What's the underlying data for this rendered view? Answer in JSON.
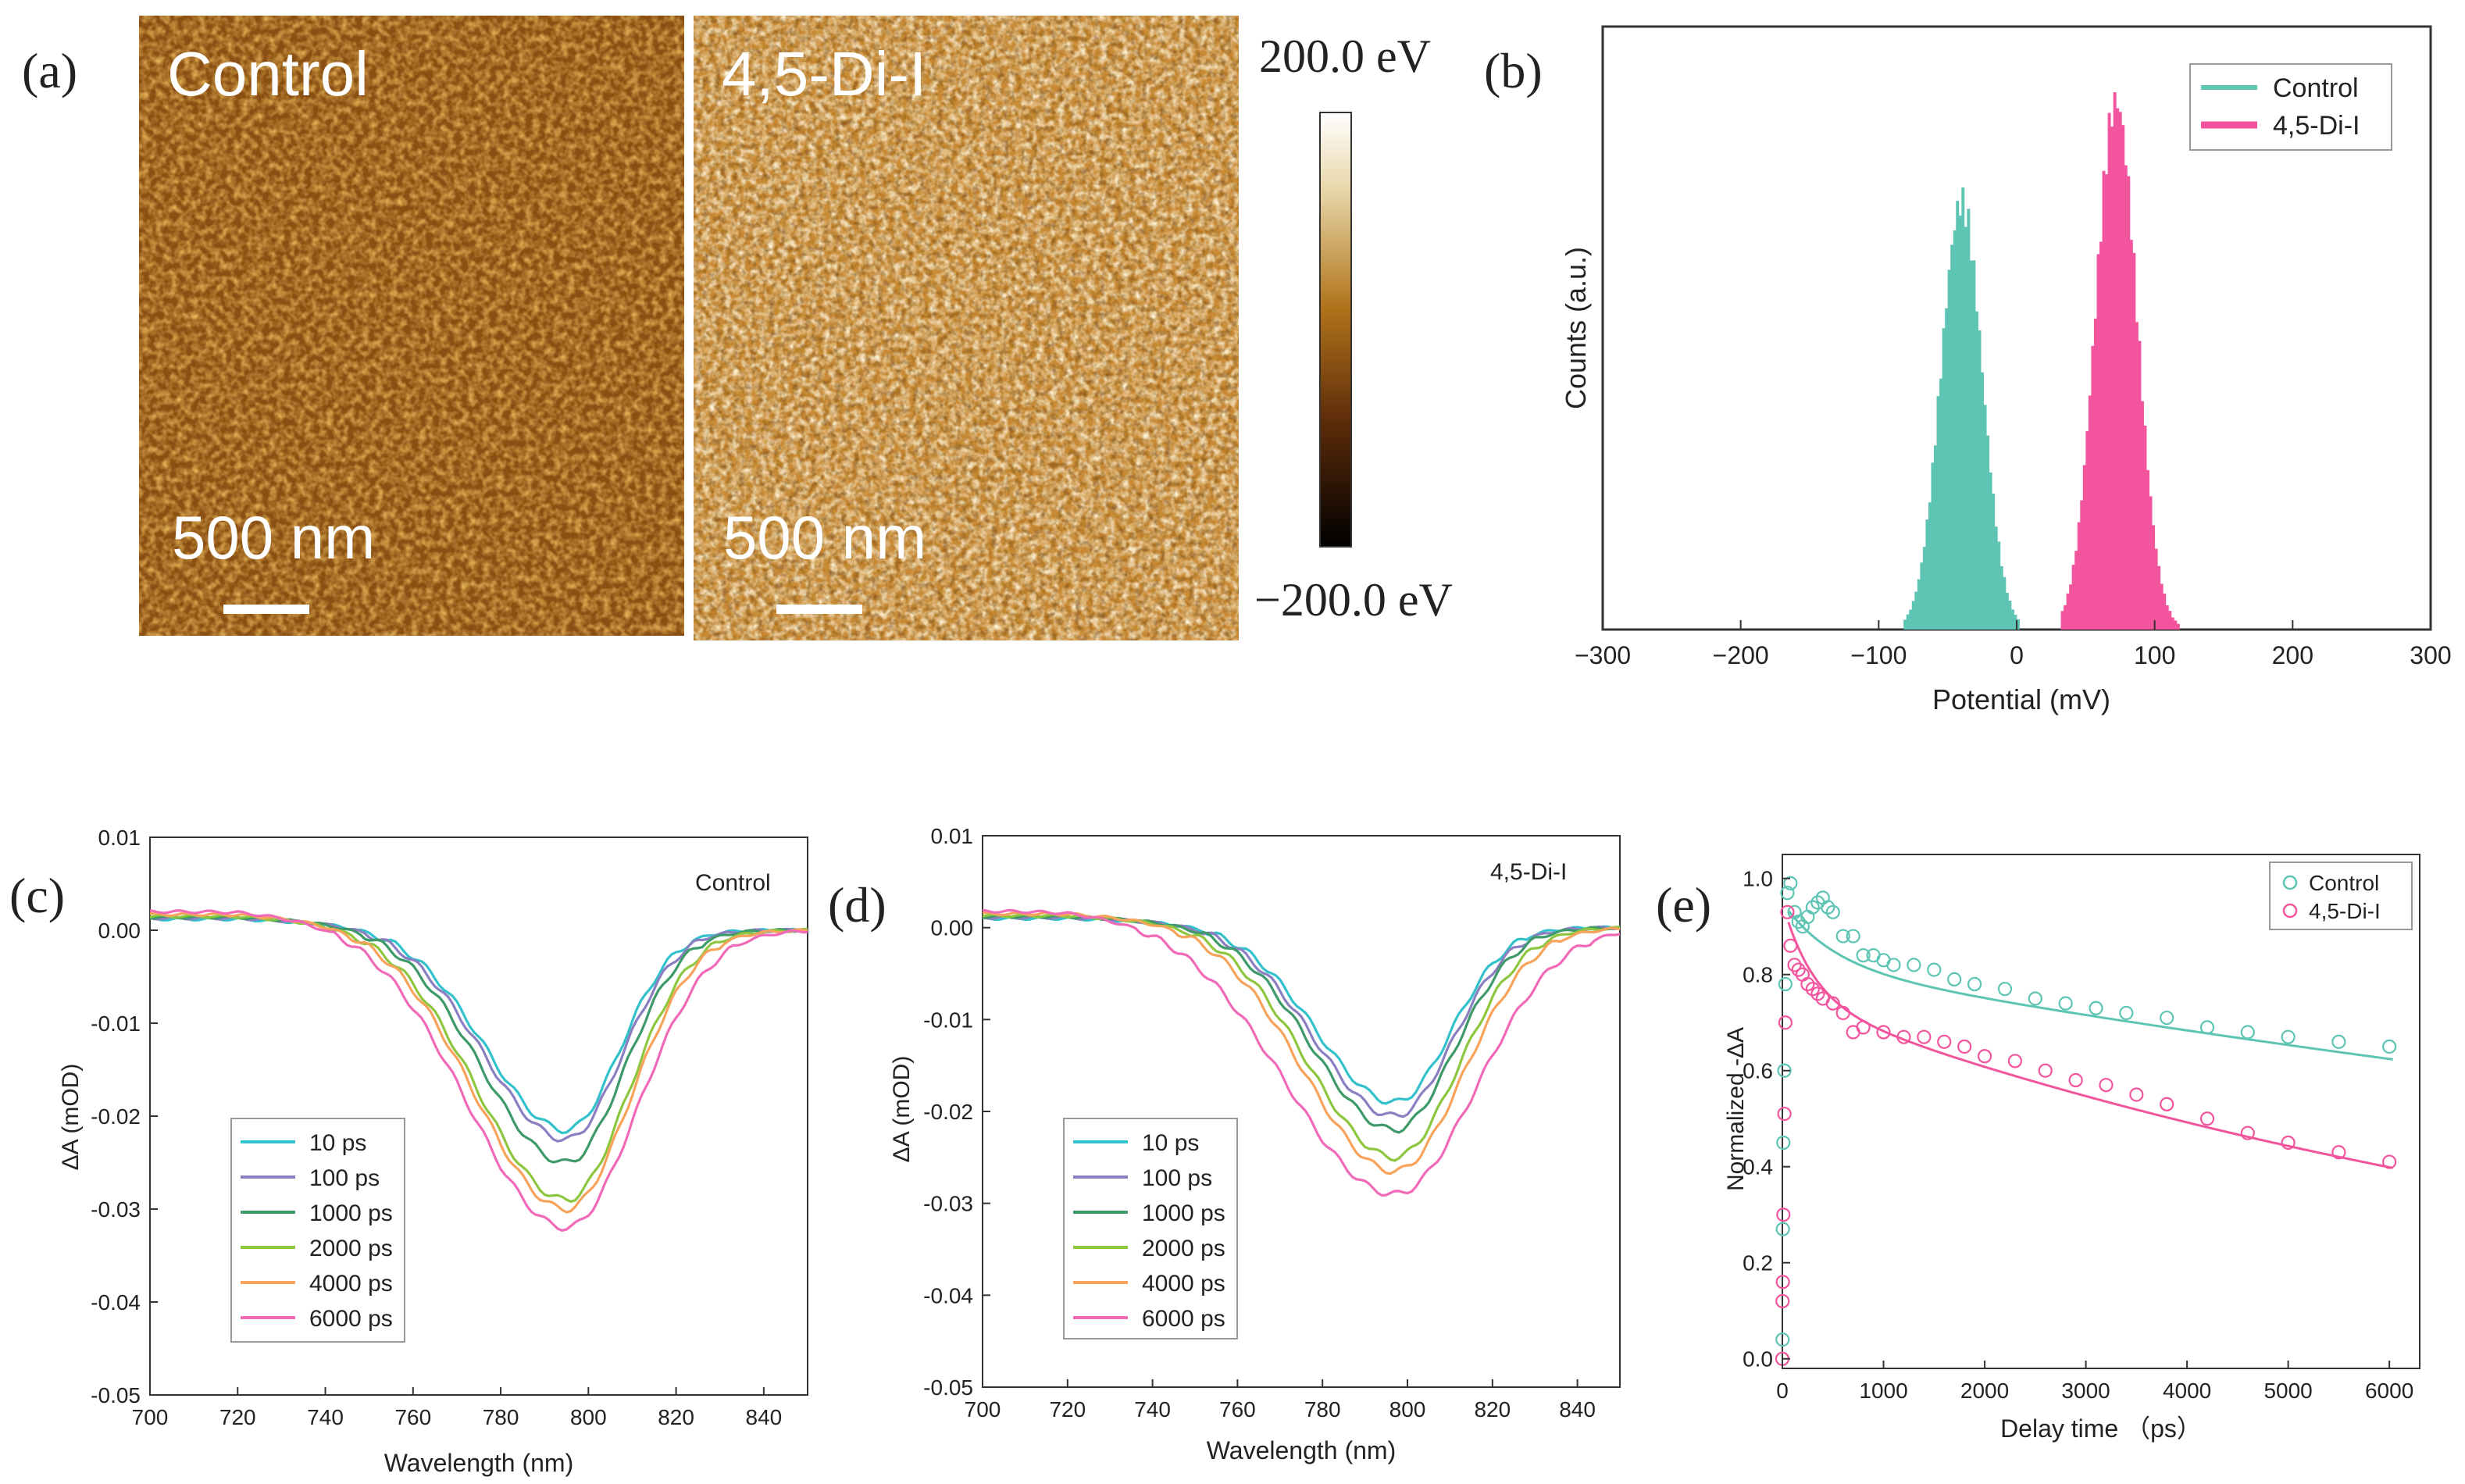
{
  "colors": {
    "control": "#5EC4B4",
    "dii": "#F2559E",
    "t10": "#33C2CC",
    "t100": "#8B7FC2",
    "t1000": "#3F9A6A",
    "t2000": "#8DC63F",
    "t4000": "#F7A35C",
    "t6000": "#F06AB8"
  },
  "chart_data": [
    {
      "type": "image",
      "panel_label": "(a)",
      "images": [
        {
          "title": "Control",
          "scalebar": "500 nm",
          "tone": "dark"
        },
        {
          "title": "4,5-Di-I",
          "scalebar": "500 nm",
          "tone": "light"
        }
      ],
      "colorbar": {
        "max_label": "200.0 eV",
        "min_label": "−200.0 eV"
      }
    },
    {
      "type": "bar",
      "panel_label": "(b)",
      "xlabel": "Potential (mV)",
      "ylabel": "Counts (a.u.)",
      "xlim": [
        -300,
        300
      ],
      "xticks": [
        -300,
        -200,
        -100,
        0,
        100,
        200,
        300
      ],
      "legend_position": "top-right",
      "series": [
        {
          "name": "Control",
          "color_key": "control",
          "center": -40,
          "sigma": 15,
          "range": [
            -82,
            2
          ],
          "peak": 0.81
        },
        {
          "name": "4,5-Di-I",
          "color_key": "dii",
          "center": 72,
          "sigma": 15,
          "range": [
            32,
            118
          ],
          "peak": 1.0
        }
      ]
    },
    {
      "type": "line",
      "panel_label": "(c)",
      "annotation": "Control",
      "xlabel": "Wavelength (nm)",
      "ylabel": "ΔA (mOD)",
      "xlim": [
        700,
        850
      ],
      "ylim": [
        -0.05,
        0.01
      ],
      "xticks": [
        700,
        720,
        740,
        760,
        780,
        800,
        820,
        840
      ],
      "yticks": [
        "0.01",
        "0.00",
        "-0.01",
        "-0.02",
        "-0.03",
        "-0.04",
        "-0.05"
      ],
      "legend_position": "bottom-left",
      "series": [
        {
          "name": "10 ps",
          "color_key": "t10",
          "min": -0.0215,
          "min_at": 795,
          "sigma_left": 18,
          "sigma_right": 12,
          "baseline": 0.0012
        },
        {
          "name": "100 ps",
          "color_key": "t100",
          "min": -0.0225,
          "min_at": 795,
          "sigma_left": 18.5,
          "sigma_right": 12.5,
          "baseline": 0.0013
        },
        {
          "name": "1000 ps",
          "color_key": "t1000",
          "min": -0.025,
          "min_at": 795,
          "sigma_left": 19,
          "sigma_right": 13,
          "baseline": 0.0014
        },
        {
          "name": "2000 ps",
          "color_key": "t2000",
          "min": -0.029,
          "min_at": 795,
          "sigma_left": 20,
          "sigma_right": 14,
          "baseline": 0.0015
        },
        {
          "name": "4000 ps",
          "color_key": "t4000",
          "min": -0.03,
          "min_at": 795,
          "sigma_left": 20.5,
          "sigma_right": 14.5,
          "baseline": 0.0017
        },
        {
          "name": "6000 ps",
          "color_key": "t6000",
          "min": -0.032,
          "min_at": 795,
          "sigma_left": 22,
          "sigma_right": 16,
          "baseline": 0.002
        }
      ]
    },
    {
      "type": "line",
      "panel_label": "(d)",
      "annotation": "4,5-Di-I",
      "xlabel": "Wavelength (nm)",
      "ylabel": "ΔA (mOD)",
      "xlim": [
        700,
        850
      ],
      "ylim": [
        -0.05,
        0.01
      ],
      "xticks": [
        700,
        720,
        740,
        760,
        780,
        800,
        820,
        840
      ],
      "yticks": [
        "0.01",
        "0.00",
        "-0.01",
        "-0.02",
        "-0.03",
        "-0.04",
        "-0.05"
      ],
      "legend_position": "bottom-left",
      "series": [
        {
          "name": "10 ps",
          "color_key": "t10",
          "min": -0.019,
          "min_at": 797,
          "sigma_left": 18,
          "sigma_right": 13,
          "baseline": 0.001
        },
        {
          "name": "100 ps",
          "color_key": "t100",
          "min": -0.0205,
          "min_at": 797,
          "sigma_left": 18.5,
          "sigma_right": 13.5,
          "baseline": 0.0011
        },
        {
          "name": "1000 ps",
          "color_key": "t1000",
          "min": -0.022,
          "min_at": 797,
          "sigma_left": 19,
          "sigma_right": 14,
          "baseline": 0.0012
        },
        {
          "name": "2000 ps",
          "color_key": "t2000",
          "min": -0.025,
          "min_at": 797,
          "sigma_left": 20,
          "sigma_right": 15,
          "baseline": 0.0013
        },
        {
          "name": "4000 ps",
          "color_key": "t4000",
          "min": -0.0265,
          "min_at": 797,
          "sigma_left": 21,
          "sigma_right": 16,
          "baseline": 0.0015
        },
        {
          "name": "6000 ps",
          "color_key": "t6000",
          "min": -0.029,
          "min_at": 797,
          "sigma_left": 25,
          "sigma_right": 19,
          "baseline": 0.0018
        }
      ]
    },
    {
      "type": "scatter",
      "panel_label": "(e)",
      "xlabel": "Delay time （ps）",
      "ylabel": "Normalized -ΔA",
      "xlim": [
        0,
        6300
      ],
      "ylim": [
        -0.02,
        1.05
      ],
      "xticks": [
        0,
        1000,
        2000,
        3000,
        4000,
        5000,
        6000
      ],
      "yticks": [
        "0.0",
        "0.2",
        "0.4",
        "0.6",
        "0.8",
        "1.0"
      ],
      "legend_position": "top-right",
      "series": [
        {
          "name": "Control",
          "color_key": "control",
          "points": [
            [
              0,
              0.0
            ],
            [
              2,
              0.04
            ],
            [
              5,
              0.27
            ],
            [
              10,
              0.45
            ],
            [
              20,
              0.6
            ],
            [
              30,
              0.78
            ],
            [
              50,
              0.97
            ],
            [
              80,
              0.99
            ],
            [
              120,
              0.93
            ],
            [
              160,
              0.91
            ],
            [
              200,
              0.9
            ],
            [
              250,
              0.92
            ],
            [
              300,
              0.94
            ],
            [
              350,
              0.95
            ],
            [
              400,
              0.96
            ],
            [
              450,
              0.94
            ],
            [
              500,
              0.93
            ],
            [
              600,
              0.88
            ],
            [
              700,
              0.88
            ],
            [
              800,
              0.84
            ],
            [
              900,
              0.84
            ],
            [
              1000,
              0.83
            ],
            [
              1100,
              0.82
            ],
            [
              1300,
              0.82
            ],
            [
              1500,
              0.81
            ],
            [
              1700,
              0.79
            ],
            [
              1900,
              0.78
            ],
            [
              2200,
              0.77
            ],
            [
              2500,
              0.75
            ],
            [
              2800,
              0.74
            ],
            [
              3100,
              0.73
            ],
            [
              3400,
              0.72
            ],
            [
              3800,
              0.71
            ],
            [
              4200,
              0.69
            ],
            [
              4600,
              0.68
            ],
            [
              5000,
              0.67
            ],
            [
              5500,
              0.66
            ],
            [
              6000,
              0.65
            ]
          ],
          "fit": {
            "a1": 0.13,
            "t1": 500,
            "a2": 0.82,
            "t2": 22000
          }
        },
        {
          "name": "4,5-Di-I",
          "color_key": "dii",
          "points": [
            [
              0,
              0.0
            ],
            [
              2,
              0.12
            ],
            [
              5,
              0.16
            ],
            [
              10,
              0.3
            ],
            [
              20,
              0.51
            ],
            [
              30,
              0.7
            ],
            [
              50,
              0.93
            ],
            [
              80,
              0.86
            ],
            [
              120,
              0.82
            ],
            [
              160,
              0.81
            ],
            [
              200,
              0.8
            ],
            [
              250,
              0.78
            ],
            [
              300,
              0.77
            ],
            [
              350,
              0.76
            ],
            [
              400,
              0.75
            ],
            [
              500,
              0.74
            ],
            [
              600,
              0.72
            ],
            [
              700,
              0.68
            ],
            [
              800,
              0.69
            ],
            [
              1000,
              0.68
            ],
            [
              1200,
              0.67
            ],
            [
              1400,
              0.67
            ],
            [
              1600,
              0.66
            ],
            [
              1800,
              0.65
            ],
            [
              2000,
              0.63
            ],
            [
              2300,
              0.62
            ],
            [
              2600,
              0.6
            ],
            [
              2900,
              0.58
            ],
            [
              3200,
              0.57
            ],
            [
              3500,
              0.55
            ],
            [
              3800,
              0.53
            ],
            [
              4200,
              0.5
            ],
            [
              4600,
              0.47
            ],
            [
              5000,
              0.45
            ],
            [
              5500,
              0.43
            ],
            [
              6000,
              0.41
            ]
          ],
          "fit": {
            "a1": 0.2,
            "t1": 300,
            "a2": 0.75,
            "t2": 9500
          }
        }
      ]
    }
  ]
}
